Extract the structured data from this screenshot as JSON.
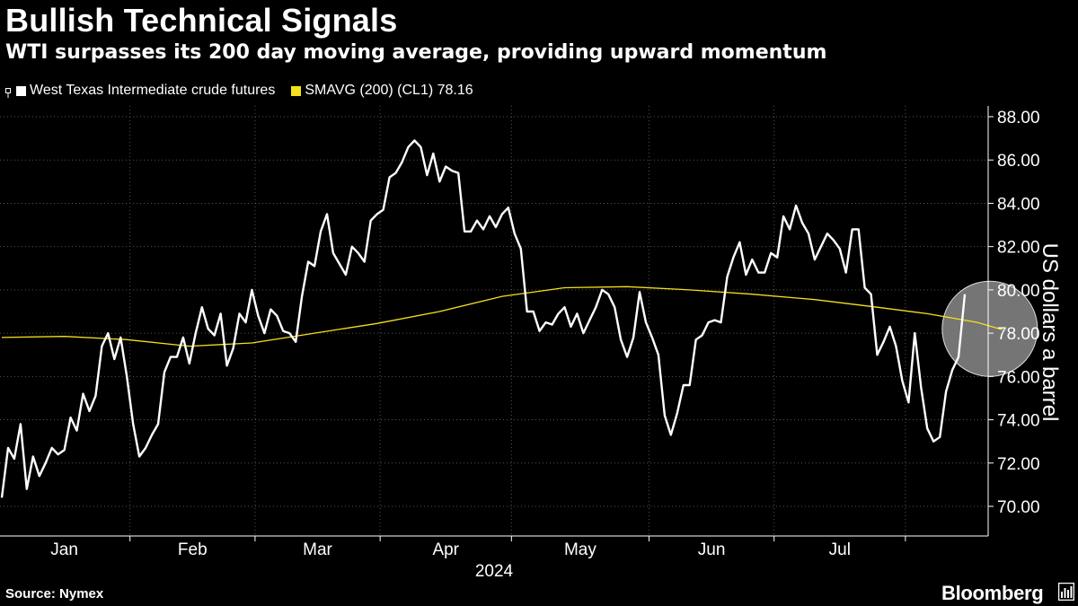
{
  "chart_data": {
    "type": "line",
    "title": "Bullish Technical Signals",
    "subtitle": "WTI surpasses its 200 day moving average, providing upward momentum",
    "ylabel": "US dollars a barrel",
    "xlabel": "2024",
    "ylim": [
      68.6,
      88.6
    ],
    "yticks": [
      "70.00",
      "72.00",
      "74.00",
      "76.00",
      "78.00",
      "80.00",
      "82.00",
      "84.00",
      "86.00",
      "88.00"
    ],
    "months": [
      "Jan",
      "Feb",
      "Mar",
      "Apr",
      "May",
      "Jun",
      "Jul"
    ],
    "x_unit": "trading_day_index_from_jan_2",
    "series": [
      {
        "name": "West Texas Intermediate crude futures",
        "legend_label": "West Texas Intermediate crude futures",
        "color": "#ffffff",
        "values": [
          70.4,
          72.7,
          72.2,
          73.8,
          70.8,
          72.3,
          71.4,
          72.0,
          72.7,
          72.4,
          72.6,
          74.1,
          73.5,
          75.2,
          74.4,
          75.1,
          77.4,
          78.0,
          76.8,
          77.8,
          76.0,
          73.8,
          72.3,
          72.7,
          73.3,
          73.8,
          76.2,
          76.9,
          76.9,
          77.8,
          76.6,
          78.0,
          79.2,
          78.2,
          77.9,
          78.9,
          76.5,
          77.3,
          78.9,
          78.5,
          80.0,
          78.8,
          78.0,
          79.1,
          78.8,
          78.1,
          78.0,
          77.6,
          79.7,
          81.3,
          81.1,
          82.7,
          83.5,
          81.7,
          81.2,
          80.7,
          82.0,
          81.7,
          81.3,
          83.2,
          83.5,
          83.7,
          85.2,
          85.4,
          85.9,
          86.6,
          86.9,
          86.6,
          85.3,
          86.3,
          85.0,
          85.7,
          85.5,
          85.4,
          82.7,
          82.7,
          83.2,
          82.8,
          83.4,
          82.9,
          83.5,
          83.8,
          82.6,
          81.9,
          79.0,
          79.0,
          78.1,
          78.5,
          78.4,
          78.9,
          79.2,
          78.3,
          78.9,
          78.0,
          78.6,
          79.2,
          80.0,
          79.8,
          79.2,
          77.7,
          76.9,
          77.8,
          79.9,
          78.5,
          77.8,
          77.0,
          74.2,
          73.3,
          74.3,
          75.6,
          75.6,
          77.7,
          77.9,
          78.5,
          78.6,
          78.5,
          80.6,
          81.5,
          82.2,
          80.7,
          81.4,
          80.8,
          80.8,
          81.7,
          81.5,
          83.4,
          82.8,
          83.9,
          83.1,
          82.6,
          81.4,
          82.0,
          82.6,
          82.3,
          81.9,
          80.8,
          82.8,
          82.8,
          80.1,
          79.8,
          77.0,
          77.6,
          78.3,
          77.4,
          75.8,
          74.8,
          78.0,
          75.5,
          73.6,
          73.0,
          73.2,
          75.3,
          76.3,
          76.9,
          79.8
        ]
      },
      {
        "name": "SMAVG (200) (CL1)",
        "legend_label": "SMAVG (200) (CL1) 78.16",
        "color": "#f4e11c",
        "last_value": 78.16,
        "points": [
          [
            0,
            77.8
          ],
          [
            10,
            77.85
          ],
          [
            20,
            77.7
          ],
          [
            30,
            77.4
          ],
          [
            40,
            77.55
          ],
          [
            50,
            78.0
          ],
          [
            60,
            78.45
          ],
          [
            70,
            79.0
          ],
          [
            80,
            79.7
          ],
          [
            90,
            80.1
          ],
          [
            100,
            80.15
          ],
          [
            110,
            80.0
          ],
          [
            120,
            79.8
          ],
          [
            130,
            79.55
          ],
          [
            140,
            79.2
          ],
          [
            148,
            78.9
          ],
          [
            156,
            78.5
          ],
          [
            160,
            78.16
          ]
        ]
      }
    ],
    "annotation": {
      "type": "circle-highlight",
      "center_x": 158,
      "center_y": 78.2,
      "note": "crossover"
    }
  },
  "source_label": "Source: Nymex",
  "brand": "Bloomberg"
}
